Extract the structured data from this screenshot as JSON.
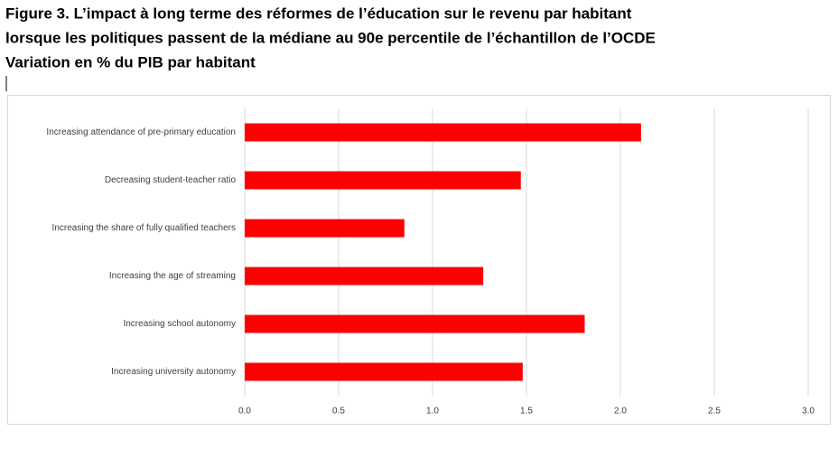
{
  "chart_data": {
    "type": "bar",
    "orientation": "horizontal",
    "title": "Figure 3. L’impact à long terme des réformes de l’éducation sur le revenu par habitant",
    "subtitle": "lorsque les politiques passent de la médiane au 90e percentile de l’échantillon de l’OCDE",
    "unit_note": "Variation en % du PIB par habitant",
    "categories": [
      "Increasing attendance of pre-primary education",
      "Decreasing student-teacher ratio",
      "Increasing the share of fully qualified teachers",
      "Increasing the age of streaming",
      "Increasing school autonomy",
      "Increasing university autonomy"
    ],
    "values": [
      2.11,
      1.47,
      0.85,
      1.27,
      1.81,
      1.48
    ],
    "color": "#ff0000",
    "xlim": [
      0,
      3
    ],
    "xticks": [
      {
        "value": 0,
        "label": "0.0"
      },
      0.5,
      {
        "value": 1,
        "label": "1.0"
      },
      1.5,
      {
        "value": 2,
        "label": "2.0"
      },
      2.5,
      {
        "value": 3,
        "label": "3.0"
      }
    ],
    "grid": true
  }
}
